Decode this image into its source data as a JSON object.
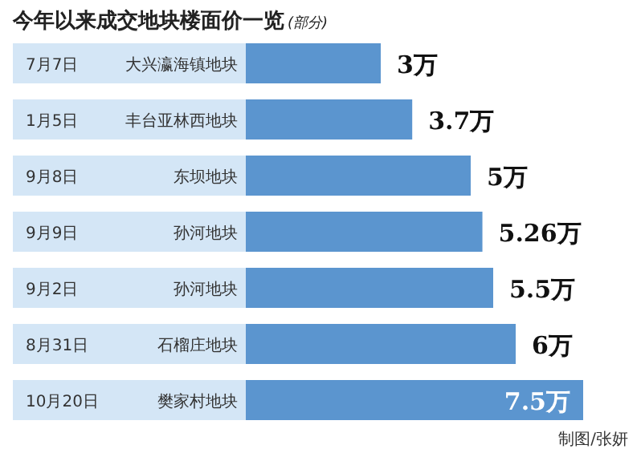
{
  "chart_data": {
    "type": "bar",
    "orientation": "horizontal",
    "title": "今年以来成交地块楼面价一览",
    "subtitle": "(部分)",
    "categories": [
      "7月7日 大兴瀛海镇地块",
      "1月5日 丰台亚林西地块",
      "9月8日 东坝地块",
      "9月9日 孙河地块",
      "9月2日 孙河地块",
      "8月31日 石榴庄地块",
      "10月20日 樊家村地块"
    ],
    "values": [
      3,
      3.7,
      5,
      5.26,
      5.5,
      6,
      7.5
    ],
    "value_labels": [
      "3万",
      "3.7万",
      "5万",
      "5.26万",
      "5.5万",
      "6万",
      "7.5万"
    ],
    "color": "#5b95cf",
    "annotations": [
      "制图/张妍"
    ]
  }
}
